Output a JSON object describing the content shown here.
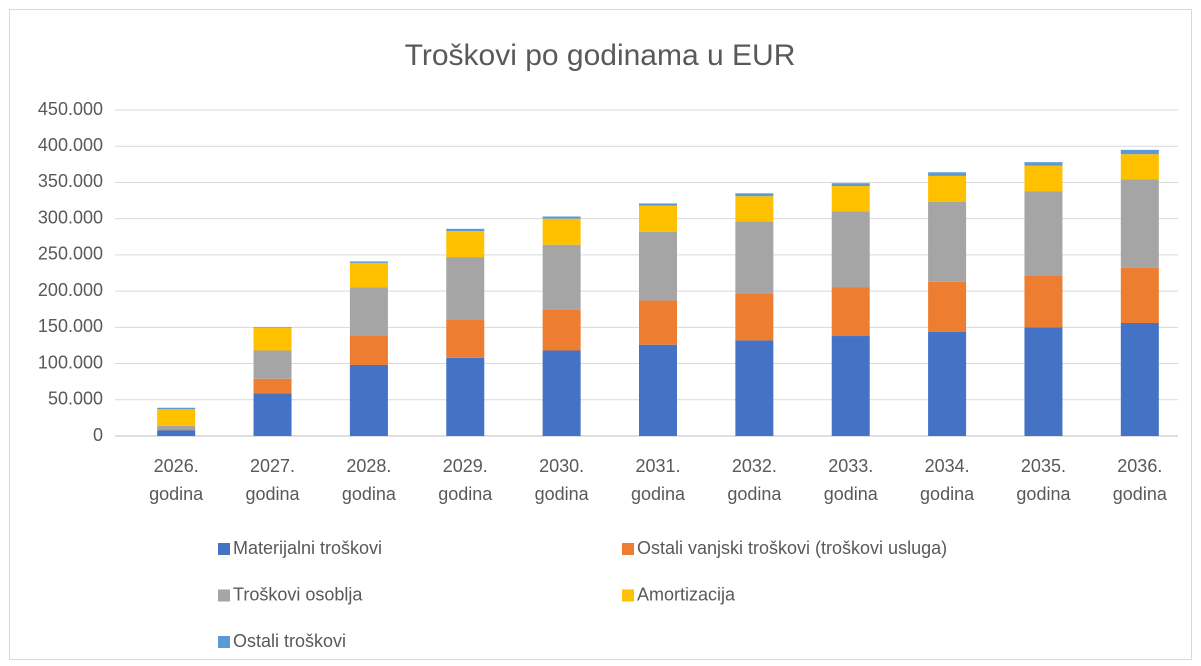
{
  "chart_data": {
    "type": "stacked_bar",
    "title": "Troškovi po godinama u EUR",
    "categories": [
      "2026. godina",
      "2027. godina",
      "2028. godina",
      "2029. godina",
      "2030. godina",
      "2031. godina",
      "2032. godina",
      "2033. godina",
      "2034. godina",
      "2035. godina",
      "2036. godina"
    ],
    "series": [
      {
        "name": "Materijalni troškovi",
        "color": "#4472c4",
        "values": [
          8000,
          59000,
          98000,
          108000,
          118000,
          126000,
          132000,
          138000,
          144000,
          150000,
          156000
        ]
      },
      {
        "name": "Ostali vanjski troškovi (troškovi usluga)",
        "color": "#ed7d31",
        "values": [
          1000,
          20000,
          41000,
          53000,
          56000,
          61000,
          64000,
          67000,
          69000,
          72000,
          76000
        ]
      },
      {
        "name": "Troškovi osoblja",
        "color": "#a5a5a5",
        "values": [
          5000,
          39000,
          66000,
          86000,
          90000,
          95000,
          100000,
          105000,
          110000,
          116000,
          122000
        ]
      },
      {
        "name": "Amortizacija",
        "color": "#ffc000",
        "values": [
          23000,
          31000,
          34000,
          36000,
          36000,
          36000,
          35000,
          35000,
          36000,
          35000,
          35000
        ]
      },
      {
        "name": "Ostali troškovi",
        "color": "#5b9bd5",
        "values": [
          2000,
          1000,
          2000,
          3000,
          3000,
          3000,
          4000,
          4000,
          5000,
          5000,
          6000
        ]
      }
    ],
    "ylim": [
      0,
      450000
    ],
    "yticks": [
      0,
      {
        "value": 50000,
        "label": "50.000"
      },
      {
        "value": 100000,
        "label": "100.000"
      },
      {
        "value": 150000,
        "label": "150.000"
      },
      {
        "value": 200000,
        "label": "200.000"
      },
      {
        "value": 250000,
        "label": "250.000"
      },
      {
        "value": 300000,
        "label": "300.000"
      },
      {
        "value": 350000,
        "label": "350.000"
      },
      {
        "value": 400000,
        "label": "400.000"
      },
      {
        "value": 450000,
        "label": "450.000"
      }
    ],
    "grid": true
  }
}
